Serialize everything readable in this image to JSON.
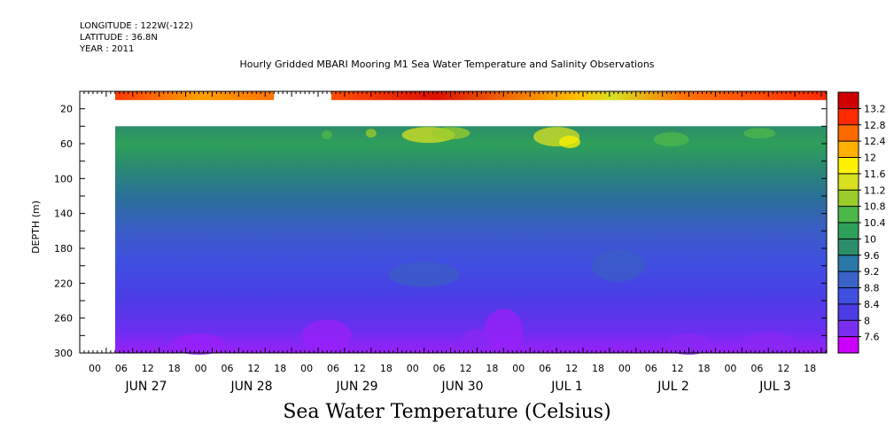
{
  "meta": {
    "longitude": "LONGITUDE : 122W(-122)",
    "latitude": "LATITUDE : 36.8N",
    "year": "YEAR : 2011"
  },
  "chart_data": {
    "type": "heatmap",
    "title": "Hourly Gridded MBARI Mooring M1 Sea Water Temperature and Salinity Observations",
    "xlabel": "Sea Water Temperature (Celsius)",
    "ylabel": "DEPTH (m)",
    "ylim": [
      300,
      0
    ],
    "y_ticks": [
      20,
      60,
      100,
      140,
      180,
      220,
      260,
      300
    ],
    "x_hour_ticks": [
      "00",
      "06",
      "12",
      "18",
      "00",
      "06",
      "12",
      "18",
      "00",
      "06",
      "12",
      "18",
      "00",
      "06",
      "12",
      "18",
      "00",
      "06",
      "12",
      "18",
      "00",
      "06",
      "12",
      "18",
      "00",
      "06",
      "12",
      "18"
    ],
    "x_day_labels": [
      "JUN 27",
      "JUN 28",
      "JUN 29",
      "JUN 30",
      "JUL 1",
      "JUL 2",
      "JUL 3"
    ],
    "colorbar": {
      "levels": [
        7.6,
        8,
        8.4,
        8.8,
        9.2,
        9.6,
        10,
        10.4,
        10.8,
        11.2,
        11.6,
        12,
        12.4,
        12.8,
        13.2
      ],
      "colors": [
        "#cc00ff",
        "#7a2ff0",
        "#4b3ce6",
        "#3f4fe0",
        "#3a62c8",
        "#2a78a8",
        "#2c8d6a",
        "#2ea05a",
        "#4db84a",
        "#9ccc2a",
        "#d8e020",
        "#fff200",
        "#ffb000",
        "#ff6a00",
        "#ff2a00",
        "#d00000"
      ]
    },
    "data_gaps": [
      "20-40 m depth, all times",
      "JUN 28 about 00-12h near surface"
    ],
    "series": [
      {
        "depth": 10,
        "values_c": [
          12.8,
          12.6,
          12.9,
          13.0,
          12.7,
          12.5,
          12.4,
          12.9
        ]
      },
      {
        "depth": 50,
        "values_c": [
          9.8,
          10.0,
          10.4,
          11.0,
          11.2,
          10.2,
          10.0,
          9.9
        ]
      },
      {
        "depth": 100,
        "values_c": [
          9.2,
          9.2,
          9.3,
          9.4,
          9.3,
          9.2,
          9.2,
          9.1
        ]
      },
      {
        "depth": 180,
        "values_c": [
          8.7,
          8.7,
          8.8,
          8.6,
          8.7,
          8.7,
          8.6,
          8.7
        ]
      },
      {
        "depth": 260,
        "values_c": [
          8.1,
          8.0,
          8.1,
          8.2,
          7.8,
          8.1,
          8.2,
          8.0
        ]
      },
      {
        "depth": 290,
        "values_c": [
          7.8,
          7.6,
          7.8,
          7.9,
          7.6,
          7.9,
          7.8,
          7.7
        ]
      }
    ],
    "series_x_days": [
      "JUN 27",
      "JUN 28",
      "JUN 29",
      "JUN 30",
      "JUL 1",
      "JUL 2",
      "JUL 3",
      "JUL 3"
    ]
  }
}
